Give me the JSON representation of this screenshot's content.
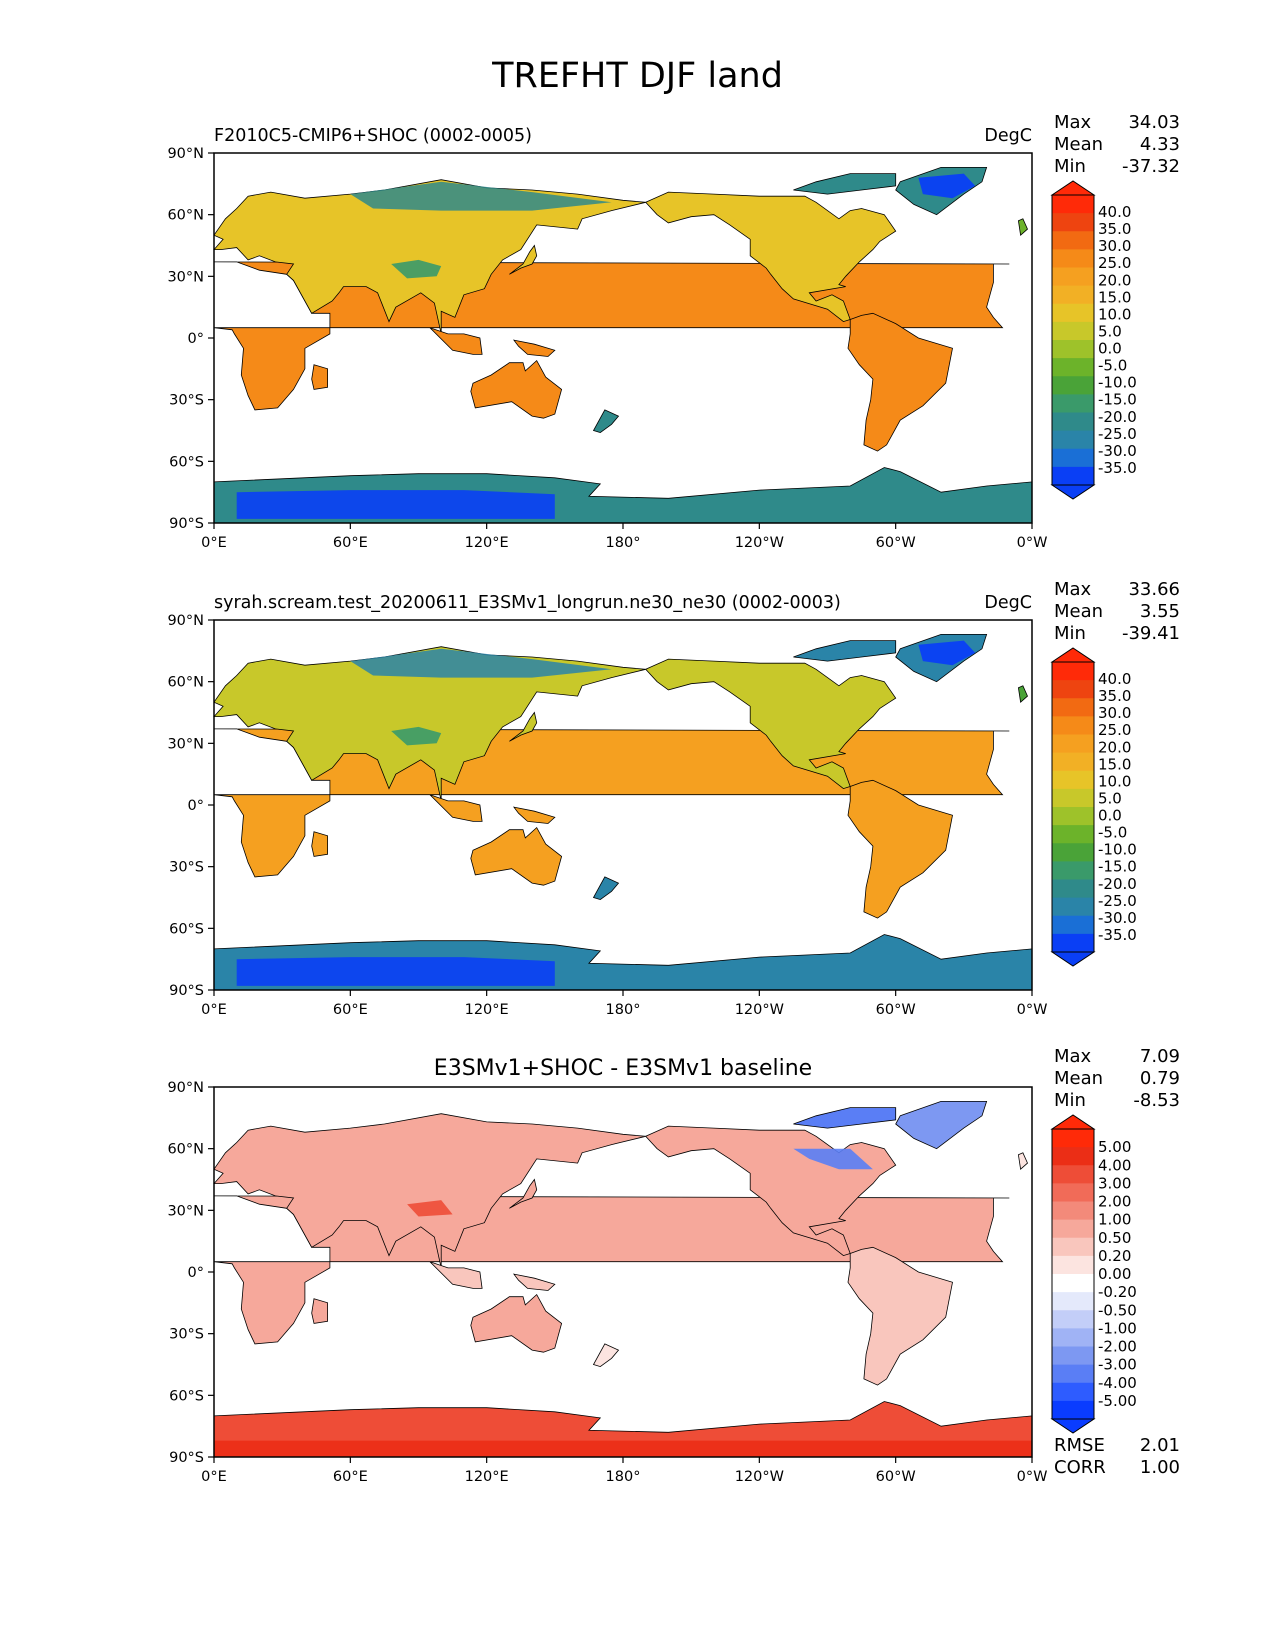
{
  "title": "TREFHT DJF land",
  "axes": {
    "lat_ticks": [
      "90°N",
      "60°N",
      "30°N",
      "0°",
      "30°S",
      "60°S",
      "90°S"
    ],
    "lon_ticks": [
      "0°E",
      "60°E",
      "120°E",
      "180°",
      "120°W",
      "60°W",
      "0°W"
    ]
  },
  "colors": {
    "temp_scale": [
      "#0a3ff5",
      "#1a6fd6",
      "#2a84a8",
      "#2f8a8a",
      "#3a9a6a",
      "#4aa338",
      "#6cb32a",
      "#9ec22a",
      "#c8c82a",
      "#e7c428",
      "#f2b025",
      "#f5a020",
      "#f58a18",
      "#f26a12",
      "#ee4410",
      "#ff2a08"
    ],
    "diff_scale": [
      "#0a3cff",
      "#2e5cff",
      "#5a7ef5",
      "#7d98f2",
      "#a0b3f5",
      "#c3cef8",
      "#e4e9fb",
      "#ffffff",
      "#fce4e0",
      "#f9c6bd",
      "#f6a89b",
      "#f38a7a",
      "#f16b58",
      "#ee4d37",
      "#eb2e16",
      "#ff2a08"
    ],
    "land_cold": "#2c8a8a",
    "land_warm": "#f39a1c"
  },
  "panels": [
    {
      "id": "model",
      "title_left": "F2010C5-CMIP6+SHOC (0002-0005)",
      "units": "DegC",
      "stats": {
        "max_label": "Max",
        "max": "34.03",
        "mean_label": "Mean",
        "mean": "4.33",
        "min_label": "Min",
        "min": "-37.32"
      },
      "colorbar_ticks": [
        "40.0",
        "35.0",
        "30.0",
        "25.0",
        "20.0",
        "15.0",
        "10.0",
        "5.0",
        "0.0",
        "-5.0",
        "-10.0",
        "-15.0",
        "-20.0",
        "-25.0",
        "-30.0",
        "-35.0"
      ]
    },
    {
      "id": "reference",
      "title_left": "syrah.scream.test_20200611_E3SMv1_longrun.ne30_ne30 (0002-0003)",
      "units": "DegC",
      "stats": {
        "max_label": "Max",
        "max": "33.66",
        "mean_label": "Mean",
        "mean": "3.55",
        "min_label": "Min",
        "min": "-39.41"
      },
      "colorbar_ticks": [
        "40.0",
        "35.0",
        "30.0",
        "25.0",
        "20.0",
        "15.0",
        "10.0",
        "5.0",
        "0.0",
        "-5.0",
        "-10.0",
        "-15.0",
        "-20.0",
        "-25.0",
        "-30.0",
        "-35.0"
      ]
    },
    {
      "id": "difference",
      "title_center": "E3SMv1+SHOC - E3SMv1 baseline",
      "stats": {
        "max_label": "Max",
        "max": "7.09",
        "mean_label": "Mean",
        "mean": "0.79",
        "min_label": "Min",
        "min": "-8.53"
      },
      "colorbar_ticks": [
        "5.00",
        "4.00",
        "3.00",
        "2.00",
        "1.00",
        "0.50",
        "0.20",
        "0.00",
        "-0.20",
        "-0.50",
        "-1.00",
        "-2.00",
        "-3.00",
        "-4.00",
        "-5.00"
      ],
      "rmse_label": "RMSE",
      "rmse": "2.01",
      "corr_label": "CORR",
      "corr": "1.00"
    }
  ]
}
